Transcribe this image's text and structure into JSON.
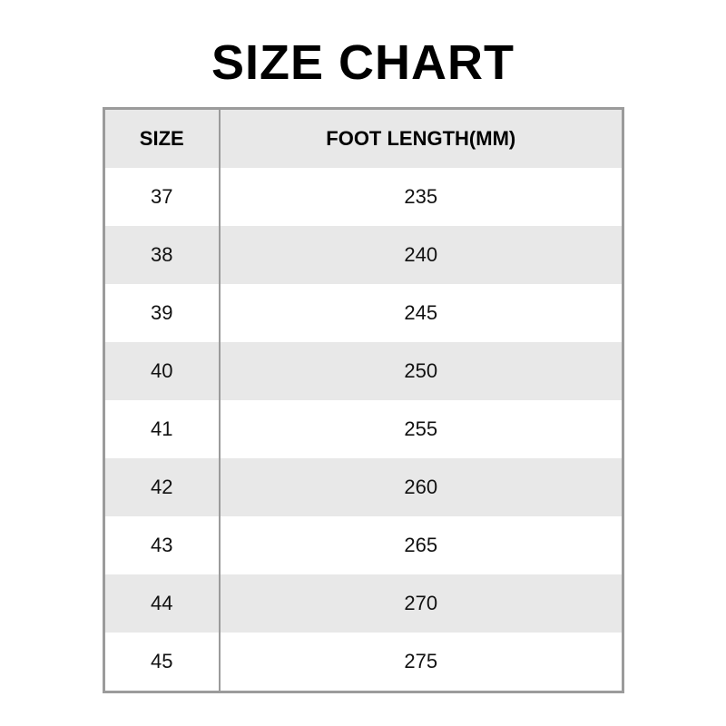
{
  "title": "SIZE CHART",
  "colors": {
    "background": "#ffffff",
    "header_row_bg": "#e8e8e8",
    "alt_row_bg": "#e8e8e8",
    "row_bg": "#ffffff",
    "border": "#9b9b9b",
    "text": "#111111",
    "title_text": "#000000"
  },
  "chart_data": {
    "type": "table",
    "title": "SIZE CHART",
    "columns": [
      "SIZE",
      "FOOT LENGTH(MM)"
    ],
    "rows": [
      [
        "37",
        "235"
      ],
      [
        "38",
        "240"
      ],
      [
        "39",
        "245"
      ],
      [
        "40",
        "250"
      ],
      [
        "41",
        "255"
      ],
      [
        "42",
        "260"
      ],
      [
        "43",
        "265"
      ],
      [
        "44",
        "270"
      ],
      [
        "45",
        "275"
      ]
    ],
    "layout": {
      "header_bold": true,
      "zebra_striping": true,
      "column_divider": true,
      "horizontal_row_lines": false
    }
  }
}
